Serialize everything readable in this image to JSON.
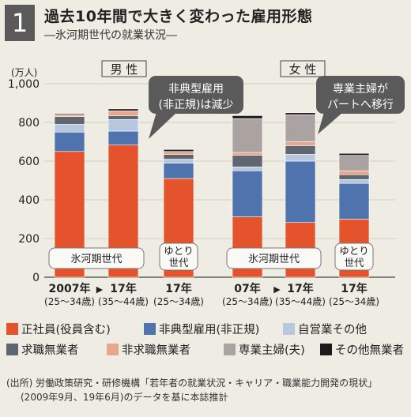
{
  "header": {
    "number": "1",
    "title": "過去10年間で大きく変わった雇用形態",
    "subtitle": "―氷河期世代の就業状況―"
  },
  "chart_data": {
    "type": "bar",
    "stacked": true,
    "y_unit": "(万人)",
    "ylim": [
      0,
      1000
    ],
    "yticks": [
      "0",
      "200",
      "400",
      "600",
      "800",
      "1,000"
    ],
    "grid": true,
    "panels": [
      {
        "label": "男 性",
        "callout": [
          "非典型雇用",
          "(非正規)は減少"
        ],
        "categories": [
          {
            "label": "2007年",
            "sub": "(25～34歳)",
            "tag": "氷河期世代",
            "values": [
              650,
              100,
              40,
              40,
              10,
              0,
              5
            ]
          },
          {
            "label": "17年",
            "sub": "(35～44歳)",
            "tag": "氷河期世代",
            "values": [
              683,
              72,
              60,
              20,
              25,
              0,
              10
            ]
          },
          {
            "label": "17年",
            "sub": "(25～34歳)",
            "tag": "ゆとり世代",
            "values": [
              510,
              80,
              20,
              25,
              15,
              0,
              10
            ]
          }
        ]
      },
      {
        "label": "女 性",
        "callout": [
          "専業主婦が",
          "パートへ移行"
        ],
        "categories": [
          {
            "label": "07年",
            "sub": "(25～34歳)",
            "tag": "氷河期世代",
            "values": [
              312,
              238,
              20,
              60,
              15,
              175,
              15
            ]
          },
          {
            "label": "17年",
            "sub": "(35～44歳)",
            "tag": "氷河期世代",
            "values": [
              283,
              317,
              35,
              45,
              20,
              140,
              10
            ]
          },
          {
            "label": "17年",
            "sub": "(25～34歳)",
            "tag": "ゆとり世代",
            "values": [
              300,
              185,
              20,
              25,
              20,
              80,
              10
            ]
          }
        ]
      }
    ],
    "series": [
      {
        "name": "正社員(役員含む)",
        "color": "#e5532d"
      },
      {
        "name": "非典型雇用(非正規)",
        "color": "#4f73ac"
      },
      {
        "name": "自営業その他",
        "color": "#b7c7de"
      },
      {
        "name": "求職無業者",
        "color": "#5f6670"
      },
      {
        "name": "非求職無業者",
        "color": "#eaa58d"
      },
      {
        "name": "専業主婦(夫)",
        "color": "#aaa3a1"
      },
      {
        "name": "その他無業者",
        "color": "#1c1a1a"
      }
    ],
    "arrow": "▶"
  },
  "source": {
    "line1": "(出所) 労働政策研究・研修機構「若年者の就業状況・キャリア・職業能力開発の現状」",
    "line2": "(2009年9月、19年6月)のデータを基に本誌推計"
  }
}
